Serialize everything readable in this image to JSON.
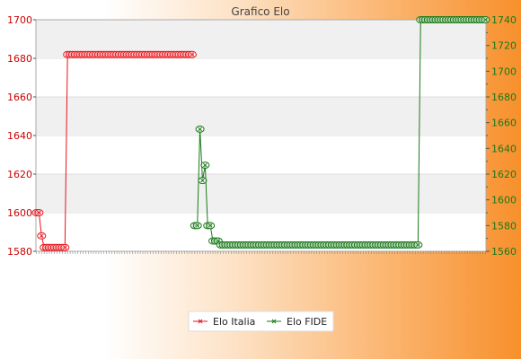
{
  "chart_data": {
    "type": "line",
    "title": "Grafico Elo",
    "xlabel": "",
    "ylabel": "",
    "grid": "horizontal bands",
    "legend_position": "bottom-center",
    "y_left": {
      "ylim": [
        1580,
        1700
      ],
      "ticks": [
        1580,
        1600,
        1620,
        1640,
        1660,
        1680,
        1700
      ]
    },
    "y_right": {
      "ylim": [
        1560,
        1740
      ],
      "ticks": [
        1560,
        1580,
        1600,
        1620,
        1640,
        1660,
        1680,
        1700,
        1720,
        1740
      ]
    },
    "series": [
      {
        "name": "Elo Italia",
        "color": "#e8141a",
        "axis": "left",
        "values": [
          1600,
          1600,
          1588,
          1582,
          1582,
          1582,
          1582,
          1582,
          1582,
          1582,
          1582,
          1582,
          1682,
          1682,
          1682,
          1682,
          1682,
          1682,
          1682,
          1682,
          1682,
          1682,
          1682,
          1682,
          1682,
          1682,
          1682,
          1682,
          1682,
          1682,
          1682,
          1682,
          1682,
          1682,
          1682,
          1682,
          1682,
          1682,
          1682,
          1682,
          1682,
          1682,
          1682,
          1682,
          1682,
          1682,
          1682,
          1682,
          1682,
          1682,
          1682,
          1682,
          1682,
          1682,
          1682,
          1682,
          1682,
          1682,
          1682,
          1682,
          1682
        ]
      },
      {
        "name": "Elo FIDE",
        "color": "#1a7a1a",
        "axis": "right",
        "values": [
          null,
          null,
          null,
          null,
          null,
          null,
          null,
          null,
          null,
          null,
          null,
          null,
          null,
          null,
          null,
          null,
          null,
          null,
          null,
          null,
          null,
          null,
          null,
          null,
          null,
          null,
          null,
          null,
          null,
          null,
          null,
          null,
          null,
          null,
          null,
          null,
          null,
          null,
          null,
          null,
          null,
          null,
          null,
          null,
          null,
          null,
          null,
          null,
          null,
          null,
          null,
          null,
          null,
          null,
          null,
          null,
          null,
          null,
          null,
          null,
          null,
          1580,
          1580,
          1655,
          1615,
          1627,
          1580,
          1580,
          1568,
          1568,
          1568,
          1565,
          1565,
          1565,
          1565,
          1565,
          1565,
          1565,
          1565,
          1565,
          1565,
          1565,
          1565,
          1565,
          1565,
          1565,
          1565,
          1565,
          1565,
          1565,
          1565,
          1565,
          1565,
          1565,
          1565,
          1565,
          1565,
          1565,
          1565,
          1565,
          1565,
          1565,
          1565,
          1565,
          1565,
          1565,
          1565,
          1565,
          1565,
          1565,
          1565,
          1565,
          1565,
          1565,
          1565,
          1565,
          1565,
          1565,
          1565,
          1565,
          1565,
          1565,
          1565,
          1565,
          1565,
          1565,
          1565,
          1565,
          1565,
          1565,
          1565,
          1565,
          1565,
          1565,
          1565,
          1565,
          1565,
          1565,
          1565,
          1565,
          1565,
          1565,
          1565,
          1565,
          1565,
          1565,
          1565,
          1565,
          1740,
          1740,
          1740,
          1740,
          1740,
          1740,
          1740,
          1740,
          1740,
          1740,
          1740,
          1740,
          1740,
          1740,
          1740,
          1740,
          1740,
          1740,
          1740,
          1740,
          1740,
          1740,
          1740,
          1740,
          1740,
          1740
        ]
      }
    ]
  }
}
